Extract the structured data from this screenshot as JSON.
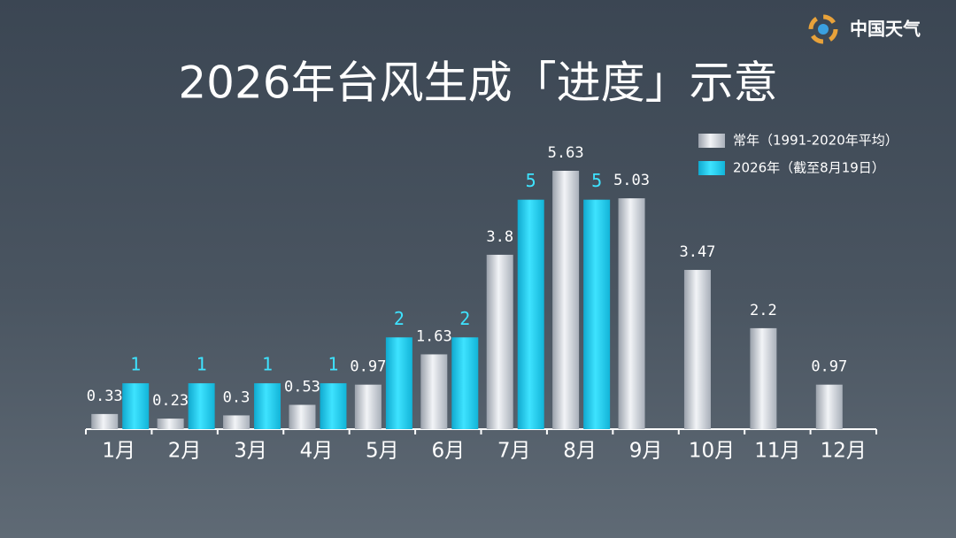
{
  "logo": "中国天气",
  "chart_data": {
    "type": "bar",
    "title": "2026年台风生成「进度」示意",
    "categories": [
      "1月",
      "2月",
      "3月",
      "4月",
      "5月",
      "6月",
      "7月",
      "8月",
      "9月",
      "10月",
      "11月",
      "12月"
    ],
    "series": [
      {
        "name": "常年（1991-2020年平均）",
        "color": "#c9ced6",
        "values": [
          0.33,
          0.23,
          0.3,
          0.53,
          0.97,
          1.63,
          3.8,
          5.63,
          5.03,
          3.47,
          2.2,
          0.97
        ]
      },
      {
        "name": "2026年（截至8月19日）",
        "color": "#1ed2f2",
        "values": [
          1,
          1,
          1,
          1,
          2,
          2,
          5,
          5,
          null,
          null,
          null,
          null
        ]
      }
    ]
  }
}
